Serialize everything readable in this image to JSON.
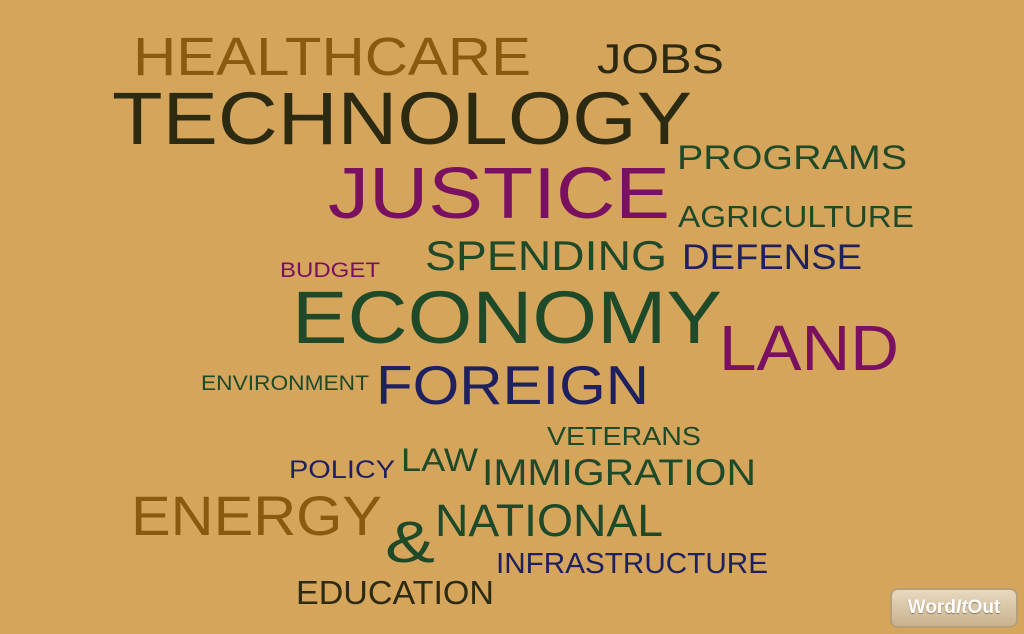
{
  "words": [
    {
      "text": "HEALTHCARE",
      "color": "#8a5a0e"
    },
    {
      "text": "JOBS",
      "color": "#2d2a12"
    },
    {
      "text": "TECHNOLOGY",
      "color": "#2d2a12"
    },
    {
      "text": "PROGRAMS",
      "color": "#1e4a2a"
    },
    {
      "text": "JUSTICE",
      "color": "#7a1060"
    },
    {
      "text": "AGRICULTURE",
      "color": "#1e4a2a"
    },
    {
      "text": "SPENDING",
      "color": "#1e4a2a"
    },
    {
      "text": "DEFENSE",
      "color": "#1e2060"
    },
    {
      "text": "BUDGET",
      "color": "#7a1060"
    },
    {
      "text": "ECONOMY",
      "color": "#1e4a2a"
    },
    {
      "text": "LAND",
      "color": "#7a1060"
    },
    {
      "text": "ENVIRONMENT",
      "color": "#1e4a2a"
    },
    {
      "text": "FOREIGN",
      "color": "#1e2060"
    },
    {
      "text": "VETERANS",
      "color": "#1e4a2a"
    },
    {
      "text": "POLICY",
      "color": "#1e2060"
    },
    {
      "text": "LAW",
      "color": "#1e4a2a"
    },
    {
      "text": "IMMIGRATION",
      "color": "#1e4a2a"
    },
    {
      "text": "ENERGY",
      "color": "#8a5a0e"
    },
    {
      "text": "&",
      "color": "#1e4a2a"
    },
    {
      "text": "NATIONAL",
      "color": "#1e4a2a"
    },
    {
      "text": "INFRASTRUCTURE",
      "color": "#1e2060"
    },
    {
      "text": "EDUCATION",
      "color": "#2d2a12"
    }
  ],
  "logo": {
    "word": "Word",
    "it": "It",
    "out": "Out"
  },
  "colors": {
    "background": "#d5a55c"
  }
}
